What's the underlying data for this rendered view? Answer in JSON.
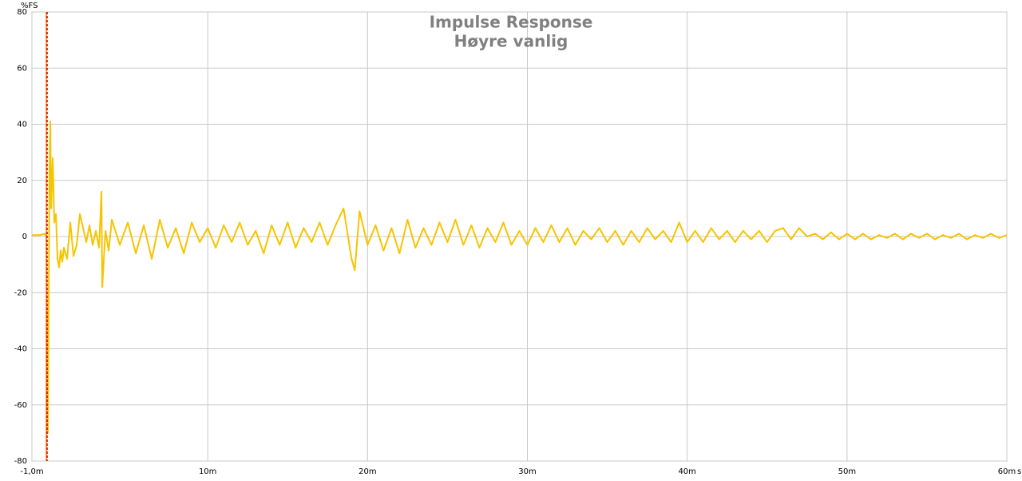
{
  "chart_data": {
    "type": "line",
    "title": "Impulse Response",
    "subtitle": "Høyre vanlig",
    "y_label": "%FS",
    "x_label": "s",
    "xlim": [
      -1,
      60
    ],
    "ylim": [
      -80,
      80
    ],
    "xticks": [
      {
        "value": -1,
        "label": "-1,0m"
      },
      {
        "value": 10,
        "label": "10m"
      },
      {
        "value": 20,
        "label": "20m"
      },
      {
        "value": 30,
        "label": "30m"
      },
      {
        "value": 40,
        "label": "40m"
      },
      {
        "value": 50,
        "label": "50m"
      },
      {
        "value": 60,
        "label": "60m"
      }
    ],
    "yticks": [
      80,
      60,
      40,
      20,
      0,
      -20,
      -40,
      -60,
      -80
    ],
    "grid": true,
    "cursors": [
      {
        "x": -0.1,
        "color": "#ff8000",
        "dashed": false
      },
      {
        "x": -0.05,
        "color": "#cc0000",
        "dashed": true
      }
    ],
    "series": [
      {
        "color": "#f7c400",
        "x": [
          -1,
          -0.5,
          -0.2,
          -0.1,
          0,
          0.05,
          0.1,
          0.15,
          0.2,
          0.3,
          0.4,
          0.5,
          0.6,
          0.7,
          0.8,
          0.9,
          1.0,
          1.2,
          1.4,
          1.6,
          1.8,
          2.0,
          2.2,
          2.4,
          2.6,
          2.8,
          3.0,
          3.2,
          3.35,
          3.4,
          3.6,
          3.8,
          4.0,
          4.5,
          5.0,
          5.5,
          6.0,
          6.5,
          7.0,
          7.5,
          8.0,
          8.5,
          9.0,
          9.5,
          10.0,
          10.5,
          11.0,
          11.5,
          12.0,
          12.5,
          13.0,
          13.5,
          14.0,
          14.5,
          15.0,
          15.5,
          16.0,
          16.5,
          17.0,
          17.5,
          18.0,
          18.5,
          19.0,
          19.2,
          19.5,
          20.0,
          20.5,
          21.0,
          21.5,
          22.0,
          22.5,
          23.0,
          23.5,
          24.0,
          24.5,
          25.0,
          25.5,
          26.0,
          26.5,
          27.0,
          27.5,
          28.0,
          28.5,
          29.0,
          29.5,
          30.0,
          30.5,
          31.0,
          31.5,
          32.0,
          32.5,
          33.0,
          33.5,
          34.0,
          34.5,
          35.0,
          35.5,
          36.0,
          36.5,
          37.0,
          37.5,
          38.0,
          38.5,
          39.0,
          39.5,
          40.0,
          40.5,
          41.0,
          41.5,
          42.0,
          42.5,
          43.0,
          43.5,
          44.0,
          44.5,
          45.0,
          45.5,
          46.0,
          46.5,
          47.0,
          47.5,
          48.0,
          48.5,
          49.0,
          49.5,
          50.0,
          50.5,
          51.0,
          51.5,
          52.0,
          52.5,
          53.0,
          53.5,
          54.0,
          54.5,
          55.0,
          55.5,
          56.0,
          56.5,
          57.0,
          57.5,
          58.0,
          58.5,
          59.0,
          59.5,
          60.0
        ],
        "values": [
          0.5,
          0.5,
          1,
          0,
          -70,
          -20,
          25,
          41,
          10,
          28,
          5,
          8,
          -8,
          -11,
          -5,
          -9,
          -4,
          -8,
          5,
          -7,
          -3,
          8,
          3,
          -2,
          4,
          -3,
          2,
          -4,
          16,
          -18,
          2,
          -5,
          6,
          -3,
          5,
          -6,
          4,
          -8,
          6,
          -4,
          3,
          -6,
          5,
          -2,
          3,
          -4,
          4,
          -2,
          5,
          -3,
          2,
          -6,
          4,
          -3,
          5,
          -4,
          3,
          -2,
          5,
          -3,
          4,
          10,
          -8,
          -12,
          9,
          -3,
          4,
          -5,
          3,
          -6,
          6,
          -4,
          3,
          -3,
          5,
          -2,
          6,
          -3,
          4,
          -4,
          3,
          -2,
          5,
          -3,
          2,
          -3,
          3,
          -2,
          4,
          -2,
          3,
          -3,
          2,
          -1,
          3,
          -2,
          2,
          -3,
          2,
          -2,
          3,
          -1,
          2,
          -2,
          5,
          -2,
          2,
          -2,
          3,
          -1,
          2,
          -2,
          2,
          -1,
          2,
          -2,
          2,
          3,
          -1,
          3,
          0,
          1,
          -1,
          1.5,
          -1,
          1,
          -1,
          1,
          -1,
          0.5,
          -0.5,
          1,
          -1,
          1,
          -0.5,
          1,
          -1,
          0.5,
          -0.5,
          1,
          -1,
          0.5,
          -0.5,
          1,
          -0.5,
          0.5
        ]
      }
    ]
  }
}
